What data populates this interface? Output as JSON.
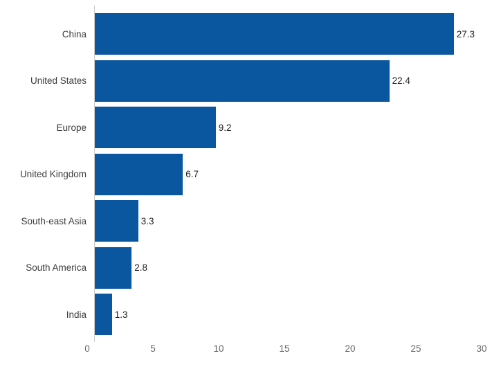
{
  "chart_data": {
    "type": "bar",
    "orientation": "horizontal",
    "title": "",
    "xlabel": "",
    "ylabel": "",
    "categories": [
      "China",
      "United States",
      "Europe",
      "United Kingdom",
      "South-east Asia",
      "South America",
      "India"
    ],
    "values": [
      27.3,
      22.4,
      9.2,
      6.7,
      3.3,
      2.8,
      1.3
    ],
    "value_labels": [
      "27.3",
      "22.4",
      "9.2",
      "6.7",
      "3.3",
      "2.8",
      "1.3"
    ],
    "x_ticks": [
      "0",
      "5",
      "10",
      "15",
      "20",
      "25",
      "30"
    ],
    "xlim": [
      0,
      30
    ],
    "grid": false,
    "legend": false,
    "colors": {
      "bar": "#0b579f",
      "axis_line": "#cccccc",
      "category_label": "#3c3c3c",
      "value_label": "#1f1f1f",
      "tick_label": "#666666"
    }
  }
}
